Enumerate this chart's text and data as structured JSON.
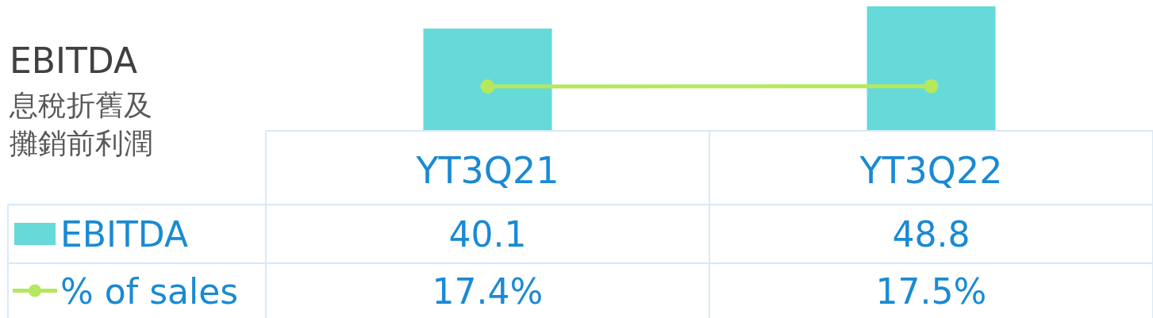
{
  "chart_data": {
    "type": "bar",
    "title": "EBITDA",
    "subtitle": "息稅折舊及攤銷前利潤",
    "categories": [
      "YT3Q21",
      "YT3Q22"
    ],
    "series": [
      {
        "name": "EBITDA",
        "color": "#66d9d9",
        "values": [
          40.1,
          48.8
        ],
        "value_labels": [
          "40.1",
          "48.8"
        ]
      },
      {
        "name": "% of sales",
        "type": "line",
        "color": "#b5e85c",
        "values": [
          17.4,
          17.5
        ],
        "value_labels": [
          "17.4%",
          "17.5%"
        ]
      }
    ],
    "ylim": [
      0,
      48.8
    ],
    "legend": "bottom",
    "marker": "circle",
    "line_style": "solid"
  }
}
